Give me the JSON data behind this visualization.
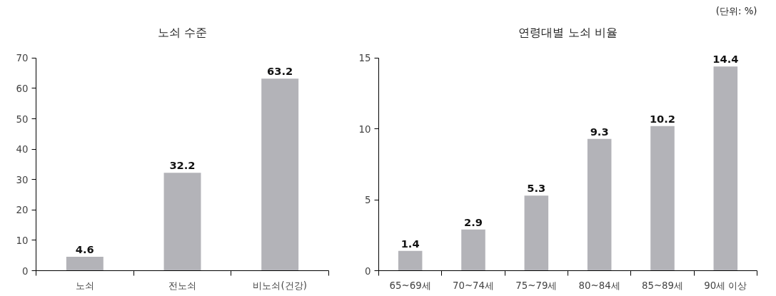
{
  "chart_data": [
    {
      "type": "bar",
      "title": "노쇠 수준",
      "categories": [
        "노쇠",
        "전노쇠",
        "비노쇠(건강)"
      ],
      "values": [
        4.6,
        32.2,
        63.2
      ],
      "color": "#b3b3b8",
      "ylim": [
        0,
        70
      ],
      "yticks": [
        0,
        10,
        20,
        30,
        40,
        50,
        60,
        70
      ],
      "data_labels": true
    },
    {
      "type": "bar",
      "title": "연령대별 노쇠 비율",
      "categories": [
        "65~69세",
        "70~74세",
        "75~79세",
        "80~84세",
        "85~89세",
        "90세 이상"
      ],
      "values": [
        1.4,
        2.9,
        5.3,
        9.3,
        10.2,
        14.4
      ],
      "color": "#b3b3b8",
      "ylim": [
        0,
        15
      ],
      "yticks": [
        0,
        5,
        10,
        15
      ],
      "data_labels": true,
      "annotations": [
        "(단위: %)"
      ]
    }
  ]
}
